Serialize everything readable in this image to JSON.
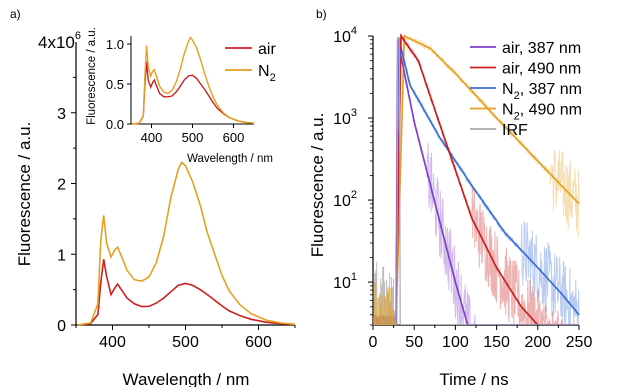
{
  "chart_data": [
    {
      "panel_label": "a)",
      "type": "line",
      "xlabel": "Wavelength / nm",
      "ylabel": "Fluorescence / a.u.",
      "xlim": [
        350,
        650
      ],
      "ylim": [
        0,
        4000000
      ],
      "y_scale_label": "4x10",
      "y_scale_exp": "6",
      "xticks": [
        400,
        500,
        600
      ],
      "yticks": [
        0,
        1,
        2,
        3
      ],
      "ytick_factor": 1000000,
      "legend": {
        "position": "top-right",
        "entries": [
          {
            "label": "air",
            "color": "#cc1f1f"
          },
          {
            "label": "N",
            "sub": "2",
            "color": "#e6a020"
          }
        ]
      },
      "series": [
        {
          "name": "air",
          "color": "#cc1f1f",
          "x": [
            352,
            370,
            380,
            384,
            388,
            392,
            398,
            403,
            407,
            412,
            420,
            430,
            440,
            450,
            460,
            470,
            480,
            490,
            500,
            510,
            520,
            530,
            540,
            550,
            560,
            575,
            590,
            610,
            630,
            650
          ],
          "y": [
            0,
            20000,
            150000,
            600000,
            930000,
            680000,
            430000,
            520000,
            580000,
            500000,
            380000,
            300000,
            260000,
            265000,
            310000,
            380000,
            470000,
            560000,
            590000,
            560000,
            500000,
            430000,
            350000,
            270000,
            200000,
            130000,
            80000,
            40000,
            20000,
            10000
          ]
        },
        {
          "name": "N2",
          "color": "#e6a020",
          "x": [
            352,
            370,
            380,
            384,
            388,
            392,
            398,
            403,
            407,
            412,
            420,
            430,
            440,
            450,
            460,
            470,
            480,
            490,
            495,
            500,
            510,
            520,
            530,
            540,
            550,
            560,
            575,
            590,
            610,
            630,
            650
          ],
          "y": [
            0,
            30000,
            300000,
            1200000,
            1550000,
            1150000,
            960000,
            1060000,
            1100000,
            980000,
            770000,
            640000,
            620000,
            680000,
            880000,
            1250000,
            1800000,
            2200000,
            2300000,
            2250000,
            2020000,
            1700000,
            1300000,
            1000000,
            700000,
            480000,
            280000,
            160000,
            70000,
            30000,
            10000
          ]
        }
      ],
      "inset": {
        "type": "line",
        "xlabel": "Wavelength / nm",
        "ylabel": "Fluorescence / a.u.",
        "xlim": [
          350,
          650
        ],
        "ylim": [
          0,
          1.1
        ],
        "xticks": [
          400,
          500,
          600
        ],
        "yticks": [
          "0.0",
          "0.5",
          "1.0"
        ],
        "series": [
          {
            "name": "air",
            "color": "#cc1f1f",
            "x": [
              352,
              370,
              380,
              384,
              388,
              392,
              398,
              403,
              407,
              412,
              420,
              430,
              440,
              450,
              460,
              470,
              480,
              490,
              500,
              510,
              520,
              530,
              540,
              550,
              560,
              575,
              590,
              610,
              630,
              650
            ],
            "y": [
              0,
              0.01,
              0.1,
              0.5,
              0.78,
              0.55,
              0.46,
              0.52,
              0.55,
              0.48,
              0.38,
              0.34,
              0.34,
              0.35,
              0.4,
              0.47,
              0.55,
              0.6,
              0.61,
              0.57,
              0.5,
              0.43,
              0.35,
              0.27,
              0.2,
              0.13,
              0.08,
              0.04,
              0.02,
              0.01
            ]
          },
          {
            "name": "N2",
            "color": "#e6a020",
            "x": [
              352,
              370,
              380,
              384,
              388,
              392,
              398,
              403,
              407,
              412,
              420,
              430,
              440,
              450,
              460,
              470,
              480,
              490,
              495,
              500,
              510,
              520,
              530,
              540,
              550,
              560,
              575,
              590,
              610,
              630,
              650
            ],
            "y": [
              0,
              0.01,
              0.1,
              0.6,
              0.98,
              0.72,
              0.6,
              0.66,
              0.68,
              0.6,
              0.47,
              0.4,
              0.38,
              0.42,
              0.52,
              0.68,
              0.88,
              1.03,
              1.08,
              1.05,
              0.95,
              0.8,
              0.62,
              0.47,
              0.34,
              0.24,
              0.14,
              0.08,
              0.04,
              0.02,
              0.01
            ]
          }
        ]
      }
    },
    {
      "panel_label": "b)",
      "type": "line",
      "xlabel": "Time / ns",
      "ylabel": "Fluorescence / a.u.",
      "yscale": "log",
      "xlim": [
        0,
        250
      ],
      "ylim": [
        3,
        10000
      ],
      "xticks": [
        0,
        50,
        100,
        150,
        200,
        250
      ],
      "yticks_major": [
        {
          "value": 10,
          "base": "10",
          "exp": "1"
        },
        {
          "value": 100,
          "base": "10",
          "exp": "2"
        },
        {
          "value": 1000,
          "base": "10",
          "exp": "3"
        },
        {
          "value": 10000,
          "base": "10",
          "exp": "4"
        }
      ],
      "legend": {
        "position": "top-right",
        "entries": [
          {
            "label": "air, 387 nm",
            "color": "#8040c8"
          },
          {
            "label": "air, 490 nm",
            "color": "#cc1f1f"
          },
          {
            "label": "N",
            "sub": "2",
            "suffix": ", 387 nm",
            "color": "#3a6fd8"
          },
          {
            "label": "N",
            "sub": "2",
            "suffix": ", 490 nm",
            "color": "#e6a020"
          },
          {
            "label": "IRF",
            "color": "#aaaaaa"
          }
        ]
      },
      "series": [
        {
          "name": "air, 387 nm",
          "color": "#8040c8",
          "noise_from": 65,
          "t0": 28,
          "peak_t": 30,
          "decay": [
            [
              30,
              9000
            ],
            [
              50,
              900
            ],
            [
              80,
              60
            ],
            [
              100,
              10
            ],
            [
              115,
              3
            ]
          ]
        },
        {
          "name": "air, 490 nm",
          "color": "#cc1f1f",
          "noise_from": 120,
          "t0": 28,
          "peak_t": 34,
          "decay": [
            [
              34,
              10000
            ],
            [
              55,
              5000
            ],
            [
              80,
              900
            ],
            [
              120,
              60
            ],
            [
              150,
              15
            ],
            [
              180,
              5
            ],
            [
              200,
              3
            ]
          ]
        },
        {
          "name": "N2, 387 nm",
          "color": "#3a6fd8",
          "noise_from": 180,
          "t0": 28,
          "peak_t": 31,
          "decay": [
            [
              31,
              9500
            ],
            [
              45,
              2500
            ],
            [
              80,
              600
            ],
            [
              120,
              150
            ],
            [
              160,
              40
            ],
            [
              200,
              15
            ],
            [
              230,
              7
            ],
            [
              250,
              4
            ]
          ]
        },
        {
          "name": "N2, 490 nm",
          "color": "#e6a020",
          "noise_from": 215,
          "t0": 28,
          "peak_t": 38,
          "decay": [
            [
              38,
              10000
            ],
            [
              70,
              7000
            ],
            [
              100,
              3500
            ],
            [
              150,
              1000
            ],
            [
              200,
              300
            ],
            [
              250,
              90
            ]
          ]
        },
        {
          "name": "IRF",
          "color": "#aaaaaa",
          "irf": [
            [
              0,
              3
            ],
            [
              29,
              3
            ],
            [
              30,
              9500
            ],
            [
              32,
              9500
            ],
            [
              33,
              3
            ],
            [
              250,
              3
            ]
          ]
        }
      ]
    }
  ]
}
